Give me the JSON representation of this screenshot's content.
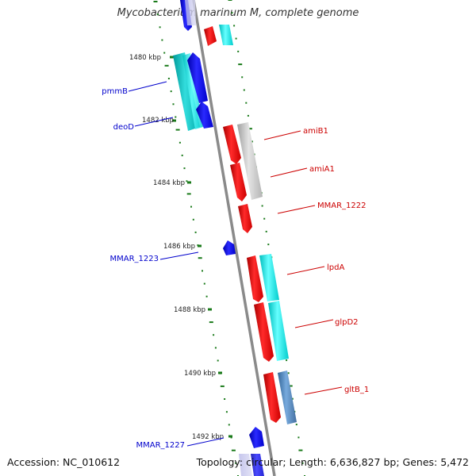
{
  "title": "Mycobacterium marinum M, complete genome",
  "footer": {
    "accession": "Accession: NC_010612",
    "summary": "Topology: circular; Length: 6,636,827 bp; Genes: 5,472"
  },
  "ruler": [
    {
      "label": "1480 kbp"
    },
    {
      "label": "1482 kbp"
    },
    {
      "label": "1484 kbp"
    },
    {
      "label": "1486 kbp"
    },
    {
      "label": "1488 kbp"
    },
    {
      "label": "1490 kbp"
    },
    {
      "label": "1492 kbp"
    }
  ],
  "gene_labels": [
    {
      "name": "pmmB",
      "strand": "reverse",
      "color": "#0000cc"
    },
    {
      "name": "deoD",
      "strand": "reverse",
      "color": "#0000cc"
    },
    {
      "name": "amiB1",
      "strand": "forward",
      "color": "#cc0000"
    },
    {
      "name": "amiA1",
      "strand": "forward",
      "color": "#cc0000"
    },
    {
      "name": "MMAR_1222",
      "strand": "forward",
      "color": "#cc0000"
    },
    {
      "name": "MMAR_1223",
      "strand": "reverse",
      "color": "#0000cc"
    },
    {
      "name": "lpdA",
      "strand": "forward",
      "color": "#cc0000"
    },
    {
      "name": "glpD2",
      "strand": "forward",
      "color": "#cc0000"
    },
    {
      "name": "gltB_1",
      "strand": "forward",
      "color": "#cc0000"
    },
    {
      "name": "MMAR_1227",
      "strand": "reverse",
      "color": "#0000cc"
    }
  ],
  "colors": {
    "forward_cds": "#ee0000",
    "reverse_cds": "#0000ee",
    "forward_label": "#cc0000",
    "reverse_label": "#0000cc",
    "backbone": "#888888",
    "tick": "#1a7a1a",
    "hit_cyan": "#22dddd",
    "hit_teal": "#22bbbb",
    "hit_gray": "#c0c0c0",
    "hit_steel": "#5588bb"
  }
}
